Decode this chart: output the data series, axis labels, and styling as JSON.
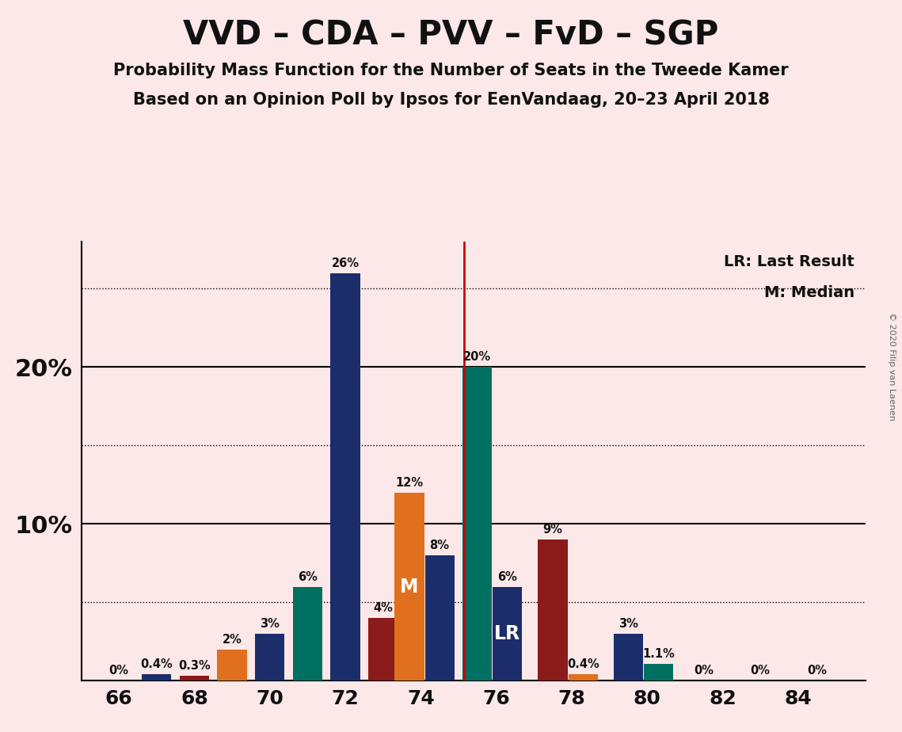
{
  "title1": "VVD – CDA – PVV – FvD – SGP",
  "title2": "Probability Mass Function for the Number of Seats in the Tweede Kamer",
  "title3": "Based on an Opinion Poll by Ipsos for EenVandaag, 20–23 April 2018",
  "copyright": "© 2020 Filip van Laenen",
  "legend_lr": "LR: Last Result",
  "legend_m": "M: Median",
  "background_color": "#fce8e8",
  "bar_data": [
    {
      "x": 66.0,
      "value": 0.0,
      "color": "#1c2d6b",
      "label": "0%",
      "inner_label": ""
    },
    {
      "x": 67.0,
      "value": 0.4,
      "color": "#1c2d6b",
      "label": "0.4%",
      "inner_label": ""
    },
    {
      "x": 68.0,
      "value": 0.3,
      "color": "#8b1a1a",
      "label": "0.3%",
      "inner_label": ""
    },
    {
      "x": 69.0,
      "value": 2.0,
      "color": "#e0701e",
      "label": "2%",
      "inner_label": ""
    },
    {
      "x": 70.0,
      "value": 3.0,
      "color": "#1c2d6b",
      "label": "3%",
      "inner_label": ""
    },
    {
      "x": 71.0,
      "value": 6.0,
      "color": "#007060",
      "label": "6%",
      "inner_label": ""
    },
    {
      "x": 72.0,
      "value": 26.0,
      "color": "#1c2d6b",
      "label": "26%",
      "inner_label": ""
    },
    {
      "x": 73.0,
      "value": 4.0,
      "color": "#8b1a1a",
      "label": "4%",
      "inner_label": ""
    },
    {
      "x": 73.7,
      "value": 12.0,
      "color": "#e0701e",
      "label": "12%",
      "inner_label": "M"
    },
    {
      "x": 74.5,
      "value": 8.0,
      "color": "#1c2d6b",
      "label": "8%",
      "inner_label": ""
    },
    {
      "x": 75.5,
      "value": 20.0,
      "color": "#007060",
      "label": "20%",
      "inner_label": ""
    },
    {
      "x": 76.3,
      "value": 6.0,
      "color": "#1c2d6b",
      "label": "6%",
      "inner_label": "LR"
    },
    {
      "x": 77.5,
      "value": 9.0,
      "color": "#8b1a1a",
      "label": "9%",
      "inner_label": ""
    },
    {
      "x": 78.3,
      "value": 0.4,
      "color": "#e0701e",
      "label": "0.4%",
      "inner_label": ""
    },
    {
      "x": 79.5,
      "value": 3.0,
      "color": "#1c2d6b",
      "label": "3%",
      "inner_label": ""
    },
    {
      "x": 80.3,
      "value": 1.1,
      "color": "#007060",
      "label": "1.1%",
      "inner_label": ""
    },
    {
      "x": 81.5,
      "value": 0.0,
      "color": "#1c2d6b",
      "label": "0%",
      "inner_label": ""
    },
    {
      "x": 83.0,
      "value": 0.0,
      "color": "#1c2d6b",
      "label": "0%",
      "inner_label": ""
    },
    {
      "x": 84.5,
      "value": 0.0,
      "color": "#1c2d6b",
      "label": "0%",
      "inner_label": ""
    }
  ],
  "lr_line_x": 75.15,
  "ylim": [
    0,
    28
  ],
  "solid_gridlines": [
    10,
    20
  ],
  "dotted_gridlines": [
    5,
    15,
    25
  ],
  "xlabel_ticks": [
    66,
    68,
    70,
    72,
    74,
    76,
    78,
    80,
    82,
    84
  ],
  "bar_width": 0.78
}
